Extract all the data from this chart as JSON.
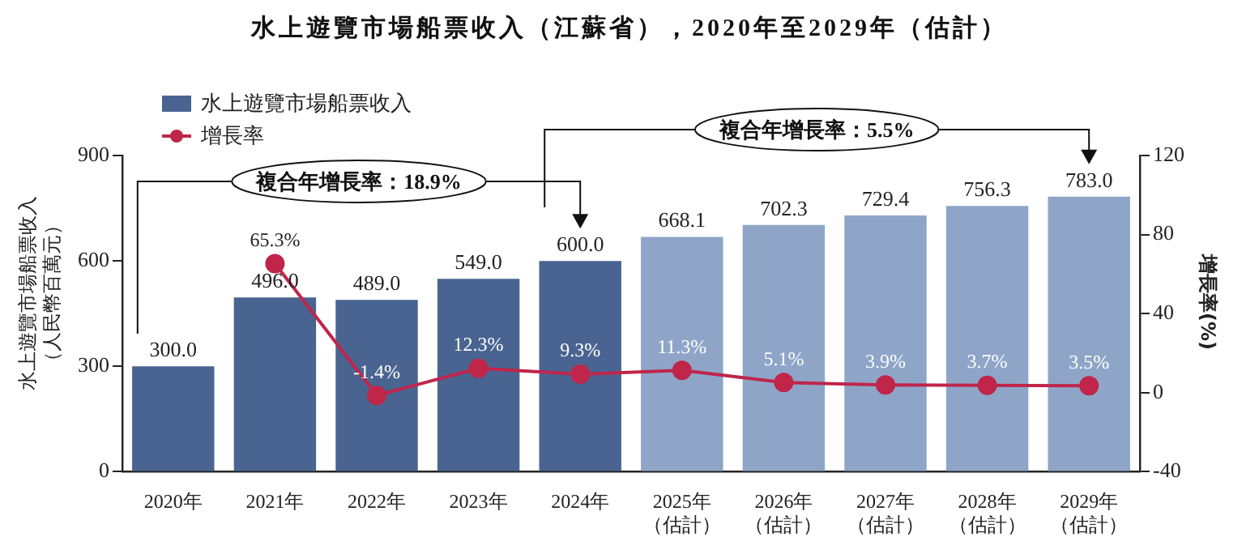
{
  "chart_data": {
    "type": "bar",
    "title": "水上遊覽市場船票收入（江蘇省），2020年至2029年（估計）",
    "ylabel": "水上遊覽市場船票收入（人民幣百萬元）",
    "y2label": "增長率(%)",
    "categories": [
      "2020年",
      "2021年",
      "2022年",
      "2023年",
      "2024年",
      "2025年（估計）",
      "2026年（估計）",
      "2027年（估計）",
      "2028年（估計）",
      "2029年（估計）"
    ],
    "series": [
      {
        "name": "水上遊覽市場船票收入",
        "color": "#4a6491",
        "colors": [
          "#4a6491",
          "#4a6491",
          "#4a6491",
          "#4a6491",
          "#4a6491",
          "#8ea5c8",
          "#8ea5c8",
          "#8ea5c8",
          "#8ea5c8",
          "#8ea5c8"
        ],
        "values": [
          300,
          496,
          489,
          549,
          600,
          668.1,
          702.3,
          729.4,
          756.3,
          783
        ],
        "value_labels": [
          "300.0",
          "496.0",
          "489.0",
          "549.0",
          "600.0",
          "668.1",
          "702.3",
          "729.4",
          "756.3",
          "783.0"
        ]
      },
      {
        "name": "增長率",
        "type": "line",
        "axis": "y2",
        "color": "#c0254a",
        "values": [
          null,
          65.3,
          -1.4,
          12.3,
          9.3,
          11.3,
          5.1,
          3.9,
          3.7,
          3.5
        ],
        "value_labels": [
          null,
          "65.3%",
          "-1.4%",
          "12.3%",
          "9.3%",
          "11.3%",
          "5.1%",
          "3.9%",
          "3.7%",
          "3.5%"
        ]
      }
    ],
    "ylim": [
      0,
      900
    ],
    "yticks": [
      0,
      300,
      600,
      900
    ],
    "y2lim": [
      -40,
      120
    ],
    "y2ticks": [
      -40,
      0,
      40,
      80,
      120
    ],
    "annotations": [
      "複合年增長率：18.9%",
      "複合年增長率：5.5%"
    ],
    "legend": "top left",
    "marker": "circle",
    "data_labels": true
  }
}
